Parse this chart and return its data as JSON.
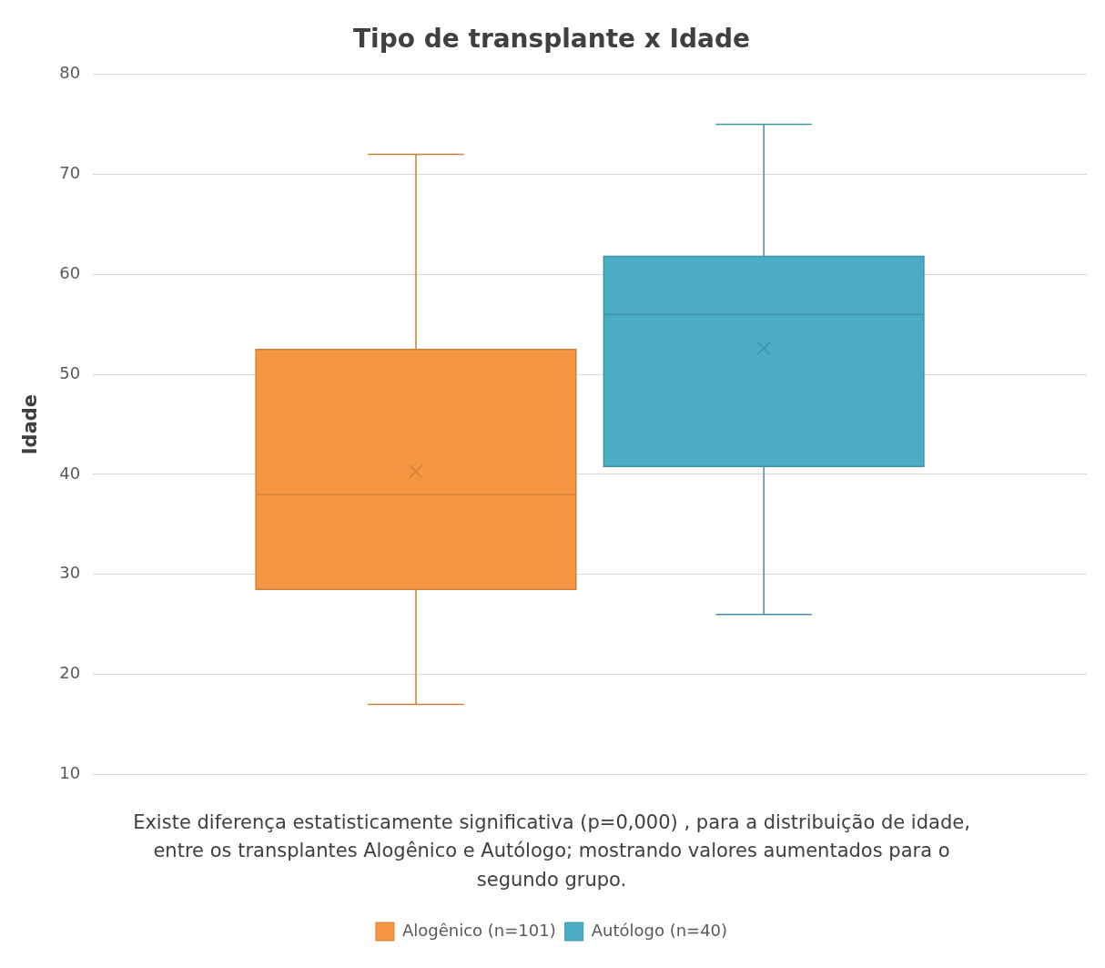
{
  "chart_data": {
    "type": "box",
    "title": "Tipo de transplante x Idade",
    "ylabel": "Idade",
    "categories": [
      null
    ],
    "series": [
      {
        "name": "Alogênico (n=101)",
        "color": "#f59643",
        "boxes": [
          {
            "low": 17,
            "q1": 28.5,
            "median": 38,
            "q3": 52.5,
            "high": 72,
            "mean": 40.3
          }
        ]
      },
      {
        "name": "Autólogo (n=40)",
        "color": "#4bacc6",
        "boxes": [
          {
            "low": 26,
            "q1": 40.8,
            "median": 56,
            "q3": 61.8,
            "high": 75,
            "mean": 52.6
          }
        ]
      }
    ],
    "ylim": [
      10,
      80
    ],
    "yticks": [
      10,
      20,
      30,
      40,
      50,
      60,
      70,
      80
    ],
    "grid": "y",
    "legend": "bottom",
    "tick_labels": "y",
    "annotations": [
      "Existe diferença estatisticamente significativa (p=0,000) , para a distribuição de idade, entre os transplantes Alogênico e Autólogo; mostrando valores aumentados para o segundo grupo."
    ]
  }
}
